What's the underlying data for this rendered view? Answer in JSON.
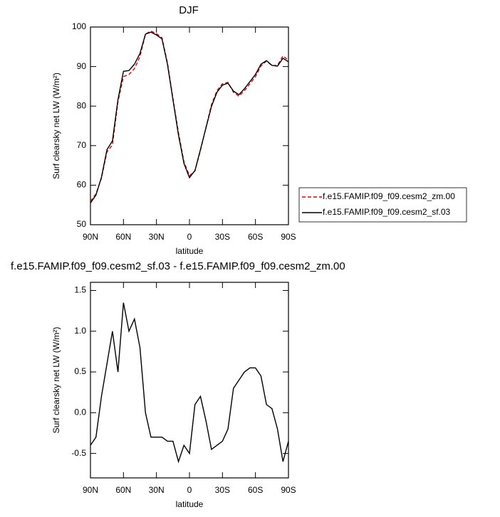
{
  "chart_data": [
    {
      "type": "line",
      "title": "DJF",
      "xlabel": "latitude",
      "ylabel": "Surf clearsky net LW (W/m²)",
      "x": [
        90,
        85,
        80,
        75,
        70,
        65,
        60,
        55,
        50,
        45,
        40,
        35,
        30,
        25,
        20,
        15,
        10,
        5,
        0,
        -5,
        -10,
        -15,
        -20,
        -25,
        -30,
        -35,
        -40,
        -45,
        -50,
        -55,
        -60,
        -65,
        -70,
        -75,
        -80,
        -85,
        -90
      ],
      "series": [
        {
          "name": "f.e15.FAMIP.f09_f09.cesm2_zm.00",
          "color": "#e00000",
          "dash": true,
          "values": [
            55.9,
            57.8,
            61.8,
            68.4,
            70.2,
            81.1,
            87.45,
            88,
            89.45,
            92.5,
            98.2,
            99,
            98.3,
            97.3,
            90.95,
            81.95,
            73.3,
            65.9,
            62.4,
            63.6,
            68.8,
            74.6,
            80.35,
            83.9,
            85.65,
            86,
            83.5,
            82.5,
            83.9,
            85.65,
            87.45,
            90.15,
            91.4,
            90.25,
            90.3,
            92.7,
            91.55
          ]
        },
        {
          "name": "f.e15.FAMIP.f09_f09.cesm2_sf.03",
          "color": "#000000",
          "dash": false,
          "values": [
            55.5,
            57.5,
            62,
            69,
            71.2,
            81.6,
            88.8,
            89,
            90.6,
            93.3,
            98.2,
            98.7,
            98,
            97,
            90.6,
            81.6,
            72.7,
            65.5,
            61.9,
            63.7,
            69,
            74.5,
            79.9,
            83.5,
            85.3,
            85.8,
            83.8,
            82.9,
            84.4,
            86.2,
            88,
            90.6,
            91.5,
            90.3,
            90.1,
            92.1,
            91.2
          ]
        }
      ],
      "xlim": [
        90,
        -90
      ],
      "xticks": [
        {
          "value": 90,
          "label": "90N"
        },
        {
          "value": 60,
          "label": "60N"
        },
        {
          "value": 30,
          "label": "30N"
        },
        0,
        {
          "value": -30,
          "label": "30S"
        },
        {
          "value": -60,
          "label": "60S"
        },
        {
          "value": -90,
          "label": "90S"
        }
      ],
      "ylim": [
        50,
        100
      ],
      "yticks": [
        50,
        60,
        70,
        80,
        90,
        100
      ]
    },
    {
      "type": "line",
      "title": "f.e15.FAMIP.f09_f09.cesm2_sf.03 - f.e15.FAMIP.f09_f09.cesm2_zm.00",
      "xlabel": "latitude",
      "ylabel": "Surf clearsky net LW (W/m²)",
      "x": [
        90,
        85,
        80,
        75,
        70,
        65,
        60,
        55,
        50,
        45,
        40,
        35,
        30,
        25,
        20,
        15,
        10,
        5,
        0,
        -5,
        -10,
        -15,
        -20,
        -25,
        -30,
        -35,
        -40,
        -45,
        -50,
        -55,
        -60,
        -65,
        -70,
        -75,
        -80,
        -85,
        -90
      ],
      "series": [
        {
          "color": "#000000",
          "dash": false,
          "values": [
            -0.4,
            -0.3,
            0.2,
            0.6,
            1.0,
            0.5,
            1.35,
            1.0,
            1.15,
            0.8,
            0.0,
            -0.3,
            -0.3,
            -0.3,
            -0.35,
            -0.35,
            -0.6,
            -0.4,
            -0.5,
            0.1,
            0.2,
            -0.1,
            -0.45,
            -0.4,
            -0.35,
            -0.2,
            0.3,
            0.4,
            0.5,
            0.55,
            0.55,
            0.45,
            0.1,
            0.05,
            -0.2,
            -0.6,
            -0.35
          ]
        }
      ],
      "xlim": [
        90,
        -90
      ],
      "xticks": [
        {
          "value": 90,
          "label": "90N"
        },
        {
          "value": 60,
          "label": "60N"
        },
        {
          "value": 30,
          "label": "30N"
        },
        0,
        {
          "value": -30,
          "label": "30S"
        },
        {
          "value": -60,
          "label": "60S"
        },
        {
          "value": -90,
          "label": "90S"
        }
      ],
      "ylim": [
        -0.8,
        1.6
      ],
      "yticks": [
        -0.5,
        {
          "value": 0,
          "label": "0.0"
        },
        0.5,
        {
          "value": 1,
          "label": "1.0"
        },
        1.5
      ]
    }
  ]
}
